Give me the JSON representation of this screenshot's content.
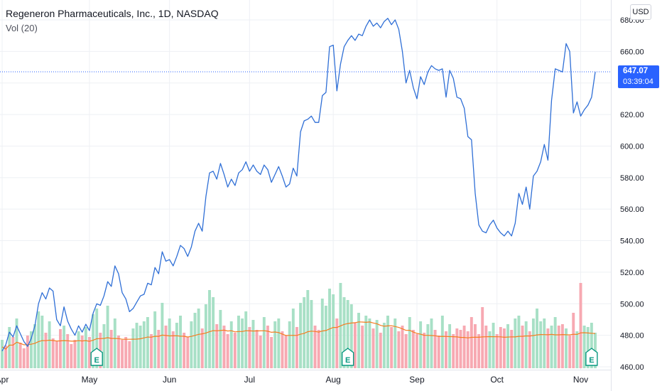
{
  "header": {
    "title": "Regeneron Pharmaceuticals, Inc., 1D, NASDAQ",
    "volume_label": "Vol (20)",
    "currency_button": "USD"
  },
  "price_tag": {
    "price": "647.07",
    "countdown": "03:39:04"
  },
  "colors": {
    "line": "#2f6fd6",
    "vol_up": "#a8e0c6",
    "vol_down": "#f7a9b2",
    "vol_ma": "#f57c1f",
    "grid": "#eef0f4",
    "axis_text": "#131722",
    "earnings": "#089981",
    "price_tag": "#2962ff"
  },
  "chart_data": {
    "type": "line",
    "series": [
      {
        "values": [
          470,
          474,
          482,
          479,
          486,
          481,
          476,
          473,
          478,
          486,
          500,
          507,
          503,
          510,
          508,
          490,
          486,
          498,
          489,
          484,
          480,
          486,
          482,
          487,
          483,
          494,
          500,
          499,
          505,
          514,
          511,
          524,
          519,
          507,
          503,
          495,
          497,
          501,
          505,
          506,
          513,
          512,
          523,
          519,
          533,
          527,
          528,
          524,
          530,
          537,
          535,
          530,
          536,
          546,
          551,
          546,
          568,
          583,
          584,
          579,
          589,
          582,
          574,
          579,
          575,
          583,
          585,
          590,
          584,
          588,
          584,
          582,
          588,
          585,
          577,
          582,
          587,
          581,
          574,
          576,
          586,
          581,
          609,
          616,
          617,
          619,
          615,
          615,
          632,
          634,
          663,
          664,
          635,
          652,
          663,
          667,
          670,
          667,
          671,
          670,
          676,
          680,
          676,
          678,
          675,
          679,
          681,
          677,
          680,
          674,
          660,
          640,
          648,
          637,
          630,
          644,
          639,
          647,
          651,
          649,
          648,
          649,
          631,
          648,
          643,
          631,
          630,
          624,
          606,
          604,
          570,
          550,
          546,
          545,
          550,
          553,
          548,
          545,
          543,
          546,
          543,
          551,
          570,
          563,
          574,
          560,
          581,
          584,
          590,
          601,
          591,
          629,
          649,
          648,
          647,
          665,
          660,
          621,
          628,
          619,
          623,
          626,
          631,
          647
        ]
      }
    ],
    "volume_up": [
      true,
      false,
      true,
      false,
      true,
      false,
      false,
      false,
      true,
      true,
      true,
      true,
      false,
      true,
      false,
      false,
      false,
      true,
      false,
      false,
      false,
      true,
      false,
      true,
      false,
      true,
      true,
      false,
      true,
      true,
      false,
      true,
      false,
      false,
      false,
      false,
      true,
      true,
      true,
      true,
      true,
      false,
      true,
      false,
      true,
      false,
      true,
      false,
      true,
      true,
      false,
      false,
      true,
      true,
      true,
      false,
      true,
      true,
      true,
      false,
      true,
      false,
      false,
      true,
      false,
      true,
      true,
      true,
      false,
      true,
      false,
      false,
      true,
      false,
      false,
      true,
      true,
      false,
      false,
      true,
      true,
      false,
      true,
      true,
      true,
      true,
      false,
      false,
      true,
      true,
      true,
      true,
      false,
      true,
      true,
      true,
      true,
      false,
      true,
      false,
      true,
      true,
      false,
      true,
      false,
      true,
      true,
      false,
      true,
      false,
      false,
      false,
      true,
      false,
      false,
      true,
      false,
      true,
      true,
      false,
      false,
      true,
      false,
      true,
      false,
      false,
      false,
      false,
      false,
      false,
      false,
      false,
      false,
      false,
      true,
      true,
      false,
      false,
      false,
      true,
      false,
      true,
      true,
      false,
      true,
      false,
      true,
      true,
      true,
      true,
      false,
      true,
      true,
      false,
      false,
      true,
      false,
      false,
      true,
      false,
      true,
      true,
      true,
      true
    ],
    "x_ticks": [
      "Apr",
      "May",
      "Jun",
      "Jul",
      "Aug",
      "Sep",
      "Oct",
      "Nov"
    ],
    "x_tick_index": [
      0,
      24,
      46,
      68,
      91,
      114,
      136,
      159
    ],
    "y_ticks": [
      "460.00",
      "480.00",
      "500.00",
      "520.00",
      "540.00",
      "560.00",
      "580.00",
      "600.00",
      "620.00",
      "640.00",
      "660.00",
      "680.00"
    ],
    "ylim": [
      460,
      685
    ],
    "last_price": 647.07,
    "earnings_markers": [
      "E",
      "E",
      "E"
    ],
    "earnings_index": [
      26,
      95,
      162
    ],
    "grid": true,
    "legend": "top-left"
  }
}
